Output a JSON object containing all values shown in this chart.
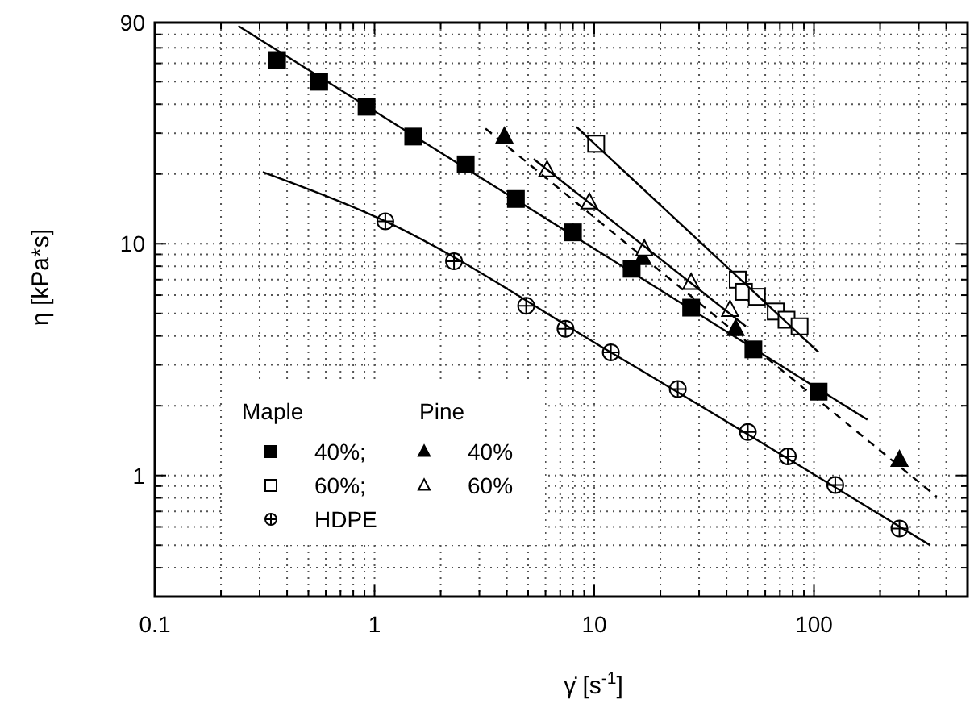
{
  "chart_data": {
    "type": "scatter",
    "xlabel": "γ̇ [s$^{-1}$]",
    "ylabel": "η [kPa*s]",
    "log": "xy",
    "grid": true,
    "legend": "bottom left",
    "annotations": [
      "Maple",
      "Pine"
    ],
    "xlim": [
      0.1,
      500
    ],
    "ylim": [
      0.3,
      90
    ],
    "xticks": [
      0.1,
      {
        "value": 0.2,
        "label": null
      },
      {
        "value": 0.3,
        "label": null
      },
      {
        "value": 0.4,
        "label": null
      },
      {
        "value": 0.5,
        "label": null
      },
      {
        "value": 0.6,
        "label": null
      },
      {
        "value": 0.7,
        "label": null
      },
      {
        "value": 0.8,
        "label": null
      },
      {
        "value": 0.9,
        "label": null
      },
      1,
      {
        "value": 2,
        "label": null
      },
      {
        "value": 3,
        "label": null
      },
      {
        "value": 4,
        "label": null
      },
      {
        "value": 5,
        "label": null
      },
      {
        "value": 6,
        "label": null
      },
      {
        "value": 7,
        "label": null
      },
      {
        "value": 8,
        "label": null
      },
      {
        "value": 9,
        "label": null
      },
      10,
      {
        "value": 20,
        "label": null
      },
      {
        "value": 30,
        "label": null
      },
      {
        "value": 40,
        "label": null
      },
      {
        "value": 50,
        "label": null
      },
      {
        "value": 60,
        "label": null
      },
      {
        "value": 70,
        "label": null
      },
      {
        "value": 80,
        "label": null
      },
      {
        "value": 90,
        "label": null
      },
      100,
      {
        "value": 200,
        "label": null
      },
      {
        "value": 300,
        "label": null
      },
      {
        "value": 400,
        "label": null
      }
    ],
    "yticks": [
      {
        "value": 0.3,
        "label": null
      },
      {
        "value": 0.4,
        "label": null
      },
      {
        "value": 0.5,
        "label": null
      },
      {
        "value": 0.6,
        "label": null
      },
      {
        "value": 0.7,
        "label": null
      },
      {
        "value": 0.8,
        "label": null
      },
      {
        "value": 0.9,
        "label": null
      },
      1,
      {
        "value": 2,
        "label": null
      },
      {
        "value": 3,
        "label": null
      },
      {
        "value": 4,
        "label": null
      },
      {
        "value": 5,
        "label": null
      },
      {
        "value": 6,
        "label": null
      },
      {
        "value": 7,
        "label": null
      },
      {
        "value": 8,
        "label": null
      },
      {
        "value": 9,
        "label": null
      },
      10,
      {
        "value": 20,
        "label": null
      },
      {
        "value": 30,
        "label": null
      },
      {
        "value": 40,
        "label": null
      },
      {
        "value": 50,
        "label": null
      },
      {
        "value": 60,
        "label": null
      },
      {
        "value": 70,
        "label": null
      },
      {
        "value": 80,
        "label": null
      },
      90
    ],
    "series": [
      {
        "name": "40%;",
        "color": "#000000",
        "marker": "square",
        "x": [
          0.36,
          0.56,
          0.92,
          1.5,
          2.6,
          4.4,
          8.0,
          14.8,
          27.6,
          53,
          105
        ],
        "values": [
          62,
          50,
          39,
          29,
          22,
          15.6,
          11.2,
          7.8,
          5.3,
          3.5,
          2.3
        ]
      },
      {
        "name": "60%;",
        "color": "#ffffff",
        "marker": "square",
        "x": [
          10.2,
          45,
          48,
          55,
          67,
          75,
          86
        ],
        "values": [
          27,
          7.0,
          6.2,
          5.9,
          5.1,
          4.7,
          4.4
        ]
      },
      {
        "name": "40%",
        "color": "#000000",
        "marker": "triangle",
        "x": [
          3.9,
          16.6,
          44,
          245
        ],
        "values": [
          29,
          8.7,
          4.3,
          1.17
        ]
      },
      {
        "name": "60%",
        "color": "#ffffff",
        "marker": "triangle",
        "x": [
          6.1,
          9.5,
          16.9,
          27.6,
          41.5
        ],
        "values": [
          20.8,
          15.1,
          9.5,
          6.8,
          5.2
        ]
      },
      {
        "name": "HDPE",
        "color": "#ffffff",
        "marker": "circle",
        "x": [
          1.12,
          2.3,
          4.9,
          7.4,
          11.9,
          24,
          50,
          76,
          125,
          245
        ],
        "values": [
          12.5,
          8.4,
          5.4,
          4.3,
          3.4,
          2.36,
          1.54,
          1.21,
          0.91,
          0.59
        ]
      },
      {
        "type": "line",
        "color": "#000000",
        "line_style": "solid",
        "x": [
          0.24,
          175
        ],
        "values": [
          87,
          1.74
        ]
      },
      {
        "type": "line",
        "color": "#000000",
        "line_style": "solid",
        "x": [
          8.3,
          105
        ],
        "values": [
          31.9,
          3.4
        ]
      },
      {
        "type": "line",
        "color": "#000000",
        "line_style": "dashed",
        "x": [
          3.2,
          362
        ],
        "values": [
          31.4,
          0.81
        ]
      },
      {
        "type": "line",
        "color": "#000000",
        "line_style": "solid",
        "x": [
          5.3,
          49
        ],
        "values": [
          23.2,
          4.4
        ]
      },
      {
        "type": "line",
        "color": "#000000",
        "line_style": "solid",
        "x": [
          0.31,
          1.12,
          11.9,
          338
        ],
        "values": [
          20.4,
          12.5,
          3.4,
          0.5
        ]
      }
    ]
  }
}
